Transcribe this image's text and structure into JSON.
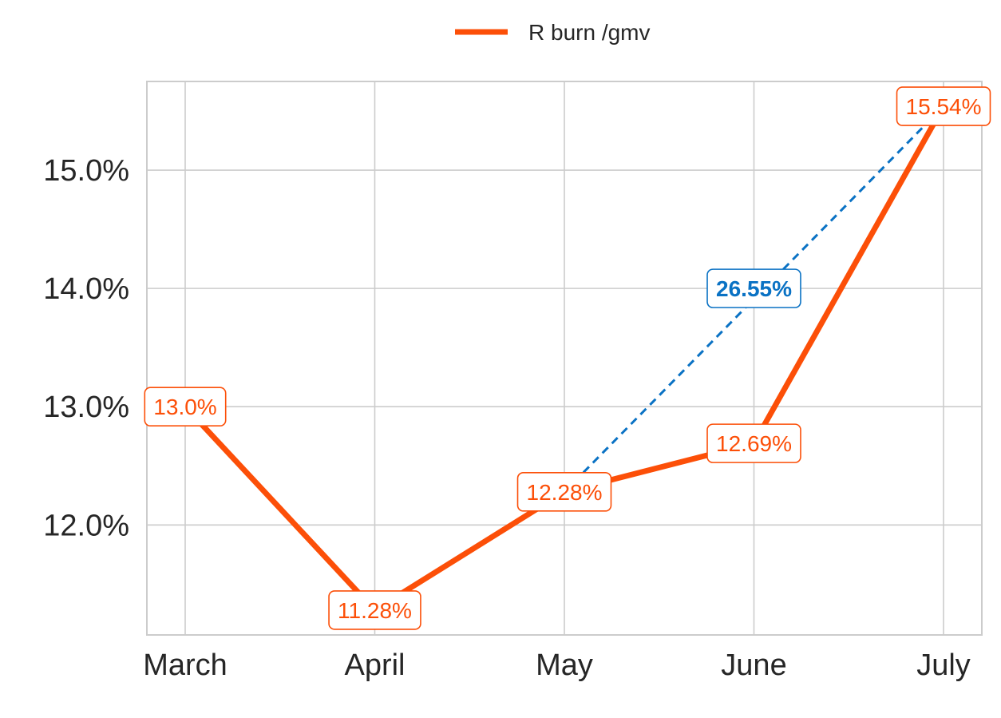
{
  "chart_data": {
    "type": "line",
    "categories": [
      "March",
      "April",
      "May",
      "June",
      "July"
    ],
    "series": [
      {
        "name": "R burn /gmv",
        "values": [
          13.0,
          11.28,
          12.28,
          12.69,
          15.54
        ],
        "labels": [
          "13.0%",
          "11.28%",
          "12.28%",
          "12.69%",
          "15.54%"
        ],
        "color": "#fc4f08"
      }
    ],
    "trend": {
      "from_category": "May",
      "to_category": "July",
      "from_value": 12.28,
      "to_value": 15.54,
      "label": "26.55%",
      "label_value": 14.0,
      "color": "#0a72c4",
      "style": "dashed"
    },
    "yticks": [
      12.0,
      13.0,
      14.0,
      15.0
    ],
    "ytick_labels": [
      "12.0%",
      "13.0%",
      "14.0%",
      "15.0%"
    ],
    "ylim": [
      11.07,
      15.75
    ],
    "grid": true,
    "legend_position": "top-center"
  }
}
